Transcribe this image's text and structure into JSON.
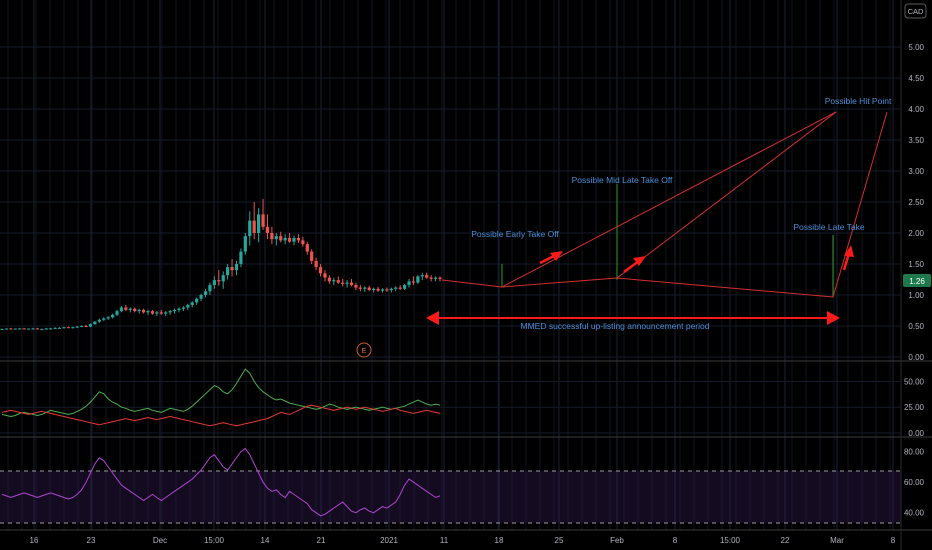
{
  "chart_data": {
    "type": "candlestick",
    "currency": "CAD",
    "last_price": "1.26",
    "xaxis_ticks": [
      "16",
      "23",
      "Dec",
      "15:00",
      "14",
      "21",
      "2021",
      "11",
      "18",
      "25",
      "Feb",
      "8",
      "15:00",
      "22",
      "Mar",
      "8"
    ],
    "price_panel": {
      "yticks": [
        "5.00",
        "4.50",
        "4.00",
        "3.50",
        "3.00",
        "2.50",
        "2.00",
        "1.50",
        "1.00",
        "0.50",
        "0.00"
      ],
      "ylim": [
        0,
        5.5
      ],
      "series": [
        {
          "type": "ohlc",
          "ohlc": [
            [
              0.45,
              0.46,
              0.44,
              0.45
            ],
            [
              0.45,
              0.46,
              0.44,
              0.46
            ],
            [
              0.46,
              0.47,
              0.45,
              0.45
            ],
            [
              0.45,
              0.46,
              0.44,
              0.46
            ],
            [
              0.46,
              0.47,
              0.45,
              0.46
            ],
            [
              0.46,
              0.47,
              0.45,
              0.45
            ],
            [
              0.45,
              0.46,
              0.44,
              0.46
            ],
            [
              0.46,
              0.47,
              0.45,
              0.46
            ],
            [
              0.46,
              0.47,
              0.45,
              0.45
            ],
            [
              0.45,
              0.46,
              0.44,
              0.45
            ],
            [
              0.45,
              0.47,
              0.44,
              0.46
            ],
            [
              0.46,
              0.47,
              0.45,
              0.46
            ],
            [
              0.46,
              0.48,
              0.45,
              0.47
            ],
            [
              0.47,
              0.48,
              0.46,
              0.47
            ],
            [
              0.47,
              0.49,
              0.46,
              0.48
            ],
            [
              0.48,
              0.49,
              0.47,
              0.47
            ],
            [
              0.47,
              0.49,
              0.46,
              0.48
            ],
            [
              0.48,
              0.5,
              0.47,
              0.49
            ],
            [
              0.49,
              0.51,
              0.48,
              0.5
            ],
            [
              0.5,
              0.52,
              0.49,
              0.49
            ],
            [
              0.49,
              0.54,
              0.48,
              0.53
            ],
            [
              0.53,
              0.58,
              0.52,
              0.57
            ],
            [
              0.57,
              0.62,
              0.55,
              0.6
            ],
            [
              0.6,
              0.64,
              0.58,
              0.62
            ],
            [
              0.62,
              0.66,
              0.6,
              0.64
            ],
            [
              0.64,
              0.7,
              0.62,
              0.68
            ],
            [
              0.68,
              0.76,
              0.66,
              0.74
            ],
            [
              0.74,
              0.82,
              0.72,
              0.8
            ],
            [
              0.8,
              0.84,
              0.74,
              0.76
            ],
            [
              0.76,
              0.8,
              0.72,
              0.78
            ],
            [
              0.78,
              0.8,
              0.72,
              0.74
            ],
            [
              0.74,
              0.78,
              0.7,
              0.76
            ],
            [
              0.76,
              0.78,
              0.7,
              0.72
            ],
            [
              0.72,
              0.76,
              0.68,
              0.74
            ],
            [
              0.74,
              0.76,
              0.68,
              0.7
            ],
            [
              0.7,
              0.74,
              0.66,
              0.72
            ],
            [
              0.72,
              0.76,
              0.68,
              0.7
            ],
            [
              0.7,
              0.74,
              0.66,
              0.72
            ],
            [
              0.72,
              0.76,
              0.68,
              0.74
            ],
            [
              0.74,
              0.78,
              0.7,
              0.76
            ],
            [
              0.76,
              0.8,
              0.72,
              0.78
            ],
            [
              0.78,
              0.82,
              0.74,
              0.8
            ],
            [
              0.8,
              0.86,
              0.76,
              0.84
            ],
            [
              0.84,
              0.9,
              0.8,
              0.88
            ],
            [
              0.88,
              0.96,
              0.84,
              0.94
            ],
            [
              0.94,
              1.02,
              0.9,
              1.0
            ],
            [
              1.0,
              1.1,
              0.96,
              1.06
            ],
            [
              1.06,
              1.2,
              1.0,
              1.16
            ],
            [
              1.16,
              1.3,
              1.1,
              1.24
            ],
            [
              1.24,
              1.4,
              1.15,
              1.22
            ],
            [
              1.22,
              1.38,
              1.1,
              1.32
            ],
            [
              1.32,
              1.5,
              1.25,
              1.45
            ],
            [
              1.45,
              1.58,
              1.3,
              1.4
            ],
            [
              1.4,
              1.55,
              1.32,
              1.5
            ],
            [
              1.5,
              1.75,
              1.45,
              1.7
            ],
            [
              1.7,
              2.0,
              1.65,
              1.95
            ],
            [
              1.95,
              2.35,
              1.8,
              2.2
            ],
            [
              2.2,
              2.5,
              1.9,
              2.0
            ],
            [
              2.0,
              2.4,
              1.85,
              2.3
            ],
            [
              2.3,
              2.55,
              2.05,
              2.1
            ],
            [
              2.1,
              2.3,
              1.9,
              2.0
            ],
            [
              2.0,
              2.1,
              1.82,
              1.9
            ],
            [
              1.9,
              2.0,
              1.8,
              1.95
            ],
            [
              1.95,
              2.02,
              1.85,
              1.88
            ],
            [
              1.88,
              1.98,
              1.82,
              1.92
            ],
            [
              1.92,
              2.0,
              1.84,
              1.86
            ],
            [
              1.86,
              1.96,
              1.8,
              1.92
            ],
            [
              1.92,
              1.98,
              1.84,
              1.88
            ],
            [
              1.88,
              1.94,
              1.78,
              1.82
            ],
            [
              1.82,
              1.86,
              1.65,
              1.7
            ],
            [
              1.7,
              1.74,
              1.5,
              1.55
            ],
            [
              1.55,
              1.6,
              1.4,
              1.45
            ],
            [
              1.45,
              1.5,
              1.3,
              1.35
            ],
            [
              1.35,
              1.4,
              1.22,
              1.28
            ],
            [
              1.28,
              1.32,
              1.18,
              1.22
            ],
            [
              1.22,
              1.28,
              1.16,
              1.24
            ],
            [
              1.24,
              1.3,
              1.18,
              1.2
            ],
            [
              1.2,
              1.26,
              1.14,
              1.18
            ],
            [
              1.18,
              1.24,
              1.12,
              1.2
            ],
            [
              1.2,
              1.26,
              1.14,
              1.16
            ],
            [
              1.16,
              1.2,
              1.08,
              1.12
            ],
            [
              1.12,
              1.16,
              1.06,
              1.1
            ],
            [
              1.1,
              1.14,
              1.05,
              1.12
            ],
            [
              1.12,
              1.15,
              1.06,
              1.08
            ],
            [
              1.08,
              1.12,
              1.04,
              1.1
            ],
            [
              1.1,
              1.13,
              1.05,
              1.07
            ],
            [
              1.07,
              1.11,
              1.04,
              1.09
            ],
            [
              1.09,
              1.12,
              1.05,
              1.08
            ],
            [
              1.08,
              1.12,
              1.04,
              1.1
            ],
            [
              1.1,
              1.14,
              1.06,
              1.12
            ],
            [
              1.12,
              1.16,
              1.08,
              1.1
            ],
            [
              1.1,
              1.18,
              1.08,
              1.16
            ],
            [
              1.16,
              1.26,
              1.12,
              1.22
            ],
            [
              1.22,
              1.3,
              1.16,
              1.2
            ],
            [
              1.2,
              1.32,
              1.18,
              1.3
            ],
            [
              1.3,
              1.36,
              1.24,
              1.32
            ],
            [
              1.32,
              1.36,
              1.26,
              1.28
            ],
            [
              1.28,
              1.32,
              1.22,
              1.26
            ],
            [
              1.26,
              1.3,
              1.22,
              1.28
            ],
            [
              1.28,
              1.3,
              1.22,
              1.26
            ]
          ]
        }
      ],
      "annotations": [
        {
          "text": "Possible Early Take Off"
        },
        {
          "text": "Possible Mid Late Take Off"
        },
        {
          "text": "Possible Late Take"
        },
        {
          "text": "Possible Hit Point"
        },
        {
          "text": "MMED successful up-listing announcement period"
        },
        {
          "text": "E"
        }
      ]
    },
    "dmi_panel": {
      "yticks": [
        "50.00",
        "25.00",
        "0.00"
      ],
      "ylim": [
        0,
        65
      ],
      "series": [
        {
          "color": "#4caf50",
          "values": [
            18,
            17,
            16,
            17,
            19,
            20,
            19,
            18,
            17,
            18,
            20,
            22,
            21,
            20,
            19,
            18,
            19,
            21,
            23,
            26,
            30,
            35,
            40,
            38,
            33,
            30,
            28,
            25,
            24,
            22,
            21,
            22,
            23,
            24,
            22,
            21,
            20,
            22,
            24,
            23,
            22,
            21,
            23,
            26,
            30,
            34,
            38,
            42,
            46,
            44,
            40,
            38,
            42,
            48,
            55,
            62,
            58,
            50,
            44,
            40,
            37,
            34,
            32,
            33,
            31,
            29,
            28,
            27,
            26,
            25,
            24,
            23,
            24,
            26,
            28,
            27,
            25,
            24,
            23,
            24,
            25,
            24,
            23,
            22,
            23,
            24,
            25,
            24,
            23,
            24,
            25,
            26,
            28,
            30,
            32,
            30,
            28,
            27,
            28,
            27
          ]
        },
        {
          "color": "#e53935",
          "values": [
            20,
            21,
            22,
            21,
            20,
            19,
            18,
            19,
            20,
            21,
            20,
            19,
            18,
            17,
            16,
            15,
            14,
            13,
            12,
            11,
            10,
            9,
            8,
            9,
            10,
            11,
            12,
            13,
            14,
            13,
            12,
            13,
            14,
            15,
            14,
            13,
            14,
            15,
            16,
            15,
            14,
            13,
            12,
            11,
            10,
            9,
            8,
            7,
            8,
            9,
            10,
            9,
            8,
            7,
            8,
            9,
            10,
            11,
            12,
            13,
            14,
            16,
            18,
            20,
            19,
            18,
            20,
            22,
            24,
            26,
            27,
            26,
            25,
            24,
            23,
            22,
            23,
            24,
            25,
            24,
            23,
            24,
            25,
            24,
            23,
            22,
            21,
            22,
            23,
            24,
            22,
            21,
            20,
            19,
            20,
            21,
            22,
            21,
            20,
            19
          ]
        }
      ]
    },
    "rsi_panel": {
      "yticks": [
        "80.00",
        "60.00",
        "40.00"
      ],
      "ylim": [
        30,
        85
      ],
      "bands": [
        70,
        30
      ],
      "series": [
        {
          "color": "#b045d0",
          "values": [
            52,
            51,
            50,
            51,
            52,
            53,
            52,
            51,
            50,
            51,
            52,
            53,
            52,
            51,
            50,
            49,
            50,
            52,
            55,
            60,
            66,
            72,
            76,
            74,
            70,
            66,
            62,
            58,
            56,
            54,
            52,
            50,
            48,
            50,
            52,
            50,
            48,
            50,
            52,
            54,
            56,
            58,
            60,
            62,
            65,
            68,
            72,
            76,
            78,
            74,
            70,
            68,
            72,
            76,
            80,
            82,
            78,
            72,
            66,
            60,
            56,
            54,
            55,
            52,
            50,
            54,
            52,
            50,
            48,
            46,
            42,
            40,
            38,
            39,
            41,
            43,
            45,
            47,
            44,
            41,
            40,
            42,
            43,
            41,
            40,
            42,
            44,
            43,
            45,
            47,
            52,
            58,
            62,
            60,
            58,
            56,
            54,
            52,
            50,
            51
          ]
        }
      ]
    }
  }
}
